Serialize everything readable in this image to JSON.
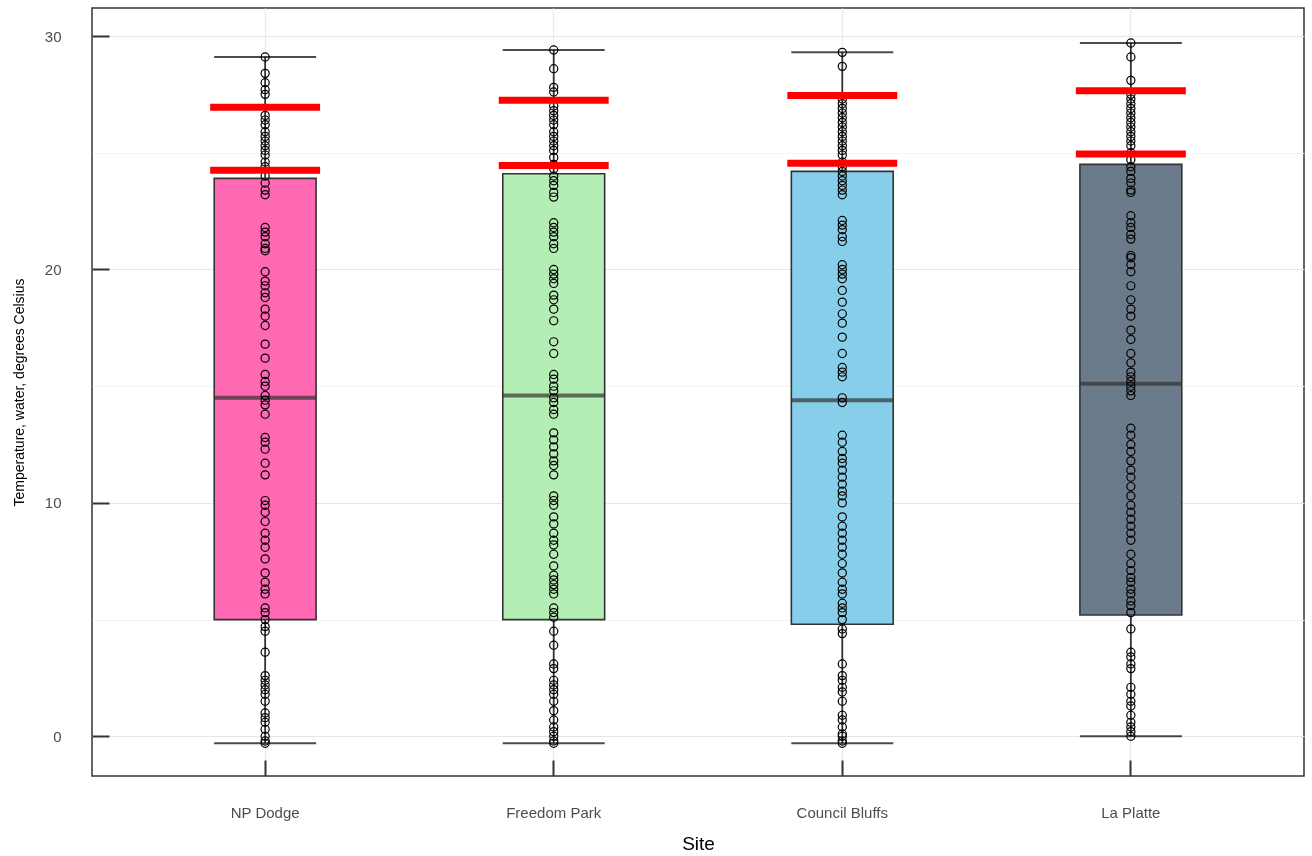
{
  "chart_data": {
    "type": "box",
    "xlabel": "Site",
    "ylabel": "Temperature, water, degrees Celsius",
    "categories": [
      "NP Dodge",
      "Freedom Park",
      "Council Bluffs",
      "La Platte"
    ],
    "boxes": [
      {
        "low": -0.3,
        "q1": 5.0,
        "median": 14.5,
        "q3": 23.9,
        "high": 29.1
      },
      {
        "low": -0.3,
        "q1": 5.0,
        "median": 14.6,
        "q3": 24.1,
        "high": 29.4
      },
      {
        "low": -0.3,
        "q1": 4.8,
        "median": 14.4,
        "q3": 24.2,
        "high": 29.3
      },
      {
        "low": 0.0,
        "q1": 5.2,
        "median": 15.1,
        "q3": 24.5,
        "high": 29.7
      }
    ],
    "colors": [
      "#ff69b4",
      "#b4eeb4",
      "#87ceeb",
      "#6c7b8b"
    ],
    "series": [
      {
        "type": "scatter",
        "color": "#000000",
        "marker": "circle",
        "x": [
          "NP Dodge",
          "NP Dodge",
          "NP Dodge",
          "NP Dodge",
          "NP Dodge",
          "NP Dodge",
          "NP Dodge",
          "NP Dodge",
          "NP Dodge",
          "NP Dodge",
          "NP Dodge",
          "NP Dodge",
          "NP Dodge",
          "NP Dodge",
          "NP Dodge",
          "NP Dodge",
          "NP Dodge",
          "NP Dodge",
          "NP Dodge",
          "NP Dodge",
          "NP Dodge",
          "NP Dodge",
          "NP Dodge",
          "NP Dodge",
          "NP Dodge",
          "NP Dodge",
          "NP Dodge",
          "NP Dodge",
          "NP Dodge",
          "NP Dodge",
          "NP Dodge",
          "NP Dodge",
          "NP Dodge",
          "NP Dodge",
          "NP Dodge",
          "NP Dodge",
          "NP Dodge",
          "NP Dodge",
          "NP Dodge",
          "NP Dodge",
          "NP Dodge",
          "NP Dodge",
          "NP Dodge",
          "NP Dodge",
          "NP Dodge",
          "NP Dodge",
          "NP Dodge",
          "NP Dodge",
          "NP Dodge",
          "NP Dodge",
          "NP Dodge",
          "NP Dodge",
          "NP Dodge",
          "NP Dodge",
          "NP Dodge",
          "NP Dodge",
          "NP Dodge",
          "NP Dodge",
          "NP Dodge",
          "NP Dodge",
          "NP Dodge",
          "NP Dodge",
          "NP Dodge",
          "NP Dodge",
          "NP Dodge",
          "NP Dodge",
          "NP Dodge",
          "NP Dodge",
          "NP Dodge",
          "NP Dodge",
          "NP Dodge",
          "NP Dodge",
          "NP Dodge",
          "NP Dodge",
          "NP Dodge",
          "NP Dodge",
          "NP Dodge",
          "NP Dodge",
          "NP Dodge"
        ],
        "values": [
          29.1,
          28.4,
          28.0,
          27.7,
          27.5,
          26.6,
          26.4,
          26.2,
          25.9,
          25.7,
          25.5,
          25.3,
          25.1,
          24.9,
          24.6,
          24.4,
          24.0,
          23.7,
          23.4,
          23.2,
          21.8,
          21.6,
          21.4,
          21.1,
          20.9,
          20.8,
          19.9,
          19.5,
          19.3,
          19.0,
          18.8,
          18.3,
          18.0,
          17.6,
          16.8,
          16.2,
          15.5,
          15.2,
          15.0,
          14.6,
          14.4,
          14.2,
          13.8,
          12.8,
          12.6,
          12.3,
          11.7,
          11.2,
          10.1,
          9.9,
          9.6,
          9.2,
          8.7,
          8.4,
          8.1,
          7.6,
          7.0,
          6.6,
          6.3,
          6.1,
          5.5,
          5.3,
          5.0,
          4.7,
          4.5,
          3.6,
          2.6,
          2.4,
          2.2,
          2.0,
          1.8,
          1.5,
          1.0,
          0.8,
          0.6,
          0.3,
          0.0,
          -0.2,
          -0.3
        ]
      },
      {
        "type": "scatter",
        "color": "#000000",
        "marker": "circle",
        "x": [
          "Freedom Park",
          "Freedom Park",
          "Freedom Park",
          "Freedom Park",
          "Freedom Park",
          "Freedom Park",
          "Freedom Park",
          "Freedom Park",
          "Freedom Park",
          "Freedom Park",
          "Freedom Park",
          "Freedom Park",
          "Freedom Park",
          "Freedom Park",
          "Freedom Park",
          "Freedom Park",
          "Freedom Park",
          "Freedom Park",
          "Freedom Park",
          "Freedom Park",
          "Freedom Park",
          "Freedom Park",
          "Freedom Park",
          "Freedom Park",
          "Freedom Park",
          "Freedom Park",
          "Freedom Park",
          "Freedom Park",
          "Freedom Park",
          "Freedom Park",
          "Freedom Park",
          "Freedom Park",
          "Freedom Park",
          "Freedom Park",
          "Freedom Park",
          "Freedom Park",
          "Freedom Park",
          "Freedom Park",
          "Freedom Park",
          "Freedom Park",
          "Freedom Park",
          "Freedom Park",
          "Freedom Park",
          "Freedom Park",
          "Freedom Park",
          "Freedom Park",
          "Freedom Park",
          "Freedom Park",
          "Freedom Park",
          "Freedom Park",
          "Freedom Park",
          "Freedom Park",
          "Freedom Park",
          "Freedom Park",
          "Freedom Park",
          "Freedom Park",
          "Freedom Park",
          "Freedom Park",
          "Freedom Park",
          "Freedom Park",
          "Freedom Park",
          "Freedom Park",
          "Freedom Park",
          "Freedom Park",
          "Freedom Park",
          "Freedom Park",
          "Freedom Park",
          "Freedom Park",
          "Freedom Park",
          "Freedom Park",
          "Freedom Park",
          "Freedom Park",
          "Freedom Park",
          "Freedom Park",
          "Freedom Park",
          "Freedom Park",
          "Freedom Park",
          "Freedom Park",
          "Freedom Park",
          "Freedom Park",
          "Freedom Park",
          "Freedom Park",
          "Freedom Park",
          "Freedom Park",
          "Freedom Park",
          "Freedom Park",
          "Freedom Park"
        ],
        "values": [
          29.4,
          28.6,
          27.8,
          27.6,
          27.0,
          26.8,
          26.6,
          26.4,
          26.2,
          25.9,
          25.7,
          25.5,
          25.3,
          25.1,
          24.8,
          24.5,
          24.3,
          24.0,
          23.8,
          23.6,
          23.3,
          23.1,
          22.0,
          21.8,
          21.6,
          21.4,
          21.1,
          20.9,
          20.0,
          19.8,
          19.6,
          19.4,
          18.9,
          18.7,
          18.3,
          17.8,
          16.9,
          16.4,
          15.5,
          15.3,
          15.0,
          14.8,
          14.5,
          14.3,
          14.0,
          13.8,
          13.0,
          12.7,
          12.4,
          12.1,
          11.8,
          11.6,
          11.2,
          10.3,
          10.1,
          9.9,
          9.4,
          9.1,
          8.7,
          8.4,
          8.2,
          7.8,
          7.3,
          6.9,
          6.7,
          6.5,
          6.3,
          6.1,
          5.5,
          5.3,
          5.1,
          4.5,
          3.9,
          3.1,
          2.9,
          2.4,
          2.2,
          2.0,
          1.8,
          1.5,
          1.1,
          0.7,
          0.4,
          0.2,
          0.0,
          -0.2,
          -0.3
        ]
      },
      {
        "type": "scatter",
        "color": "#000000",
        "marker": "circle",
        "x": [
          "Council Bluffs",
          "Council Bluffs",
          "Council Bluffs",
          "Council Bluffs",
          "Council Bluffs",
          "Council Bluffs",
          "Council Bluffs",
          "Council Bluffs",
          "Council Bluffs",
          "Council Bluffs",
          "Council Bluffs",
          "Council Bluffs",
          "Council Bluffs",
          "Council Bluffs",
          "Council Bluffs",
          "Council Bluffs",
          "Council Bluffs",
          "Council Bluffs",
          "Council Bluffs",
          "Council Bluffs",
          "Council Bluffs",
          "Council Bluffs",
          "Council Bluffs",
          "Council Bluffs",
          "Council Bluffs",
          "Council Bluffs",
          "Council Bluffs",
          "Council Bluffs",
          "Council Bluffs",
          "Council Bluffs",
          "Council Bluffs",
          "Council Bluffs",
          "Council Bluffs",
          "Council Bluffs",
          "Council Bluffs",
          "Council Bluffs",
          "Council Bluffs",
          "Council Bluffs",
          "Council Bluffs",
          "Council Bluffs",
          "Council Bluffs",
          "Council Bluffs",
          "Council Bluffs",
          "Council Bluffs",
          "Council Bluffs",
          "Council Bluffs",
          "Council Bluffs",
          "Council Bluffs",
          "Council Bluffs",
          "Council Bluffs",
          "Council Bluffs",
          "Council Bluffs",
          "Council Bluffs",
          "Council Bluffs",
          "Council Bluffs",
          "Council Bluffs",
          "Council Bluffs",
          "Council Bluffs",
          "Council Bluffs",
          "Council Bluffs",
          "Council Bluffs",
          "Council Bluffs",
          "Council Bluffs",
          "Council Bluffs",
          "Council Bluffs",
          "Council Bluffs",
          "Council Bluffs",
          "Council Bluffs",
          "Council Bluffs",
          "Council Bluffs",
          "Council Bluffs",
          "Council Bluffs",
          "Council Bluffs",
          "Council Bluffs",
          "Council Bluffs",
          "Council Bluffs",
          "Council Bluffs",
          "Council Bluffs",
          "Council Bluffs",
          "Council Bluffs",
          "Council Bluffs",
          "Council Bluffs",
          "Council Bluffs",
          "Council Bluffs"
        ],
        "values": [
          29.3,
          28.7,
          27.3,
          27.1,
          26.9,
          26.7,
          26.5,
          26.3,
          26.1,
          25.9,
          25.7,
          25.5,
          25.3,
          25.1,
          24.9,
          24.6,
          24.4,
          24.2,
          24.0,
          23.8,
          23.6,
          23.4,
          23.2,
          22.1,
          21.9,
          21.7,
          21.4,
          21.2,
          20.2,
          20.0,
          19.8,
          19.6,
          19.1,
          18.6,
          18.1,
          17.7,
          17.1,
          16.4,
          15.8,
          15.6,
          15.4,
          14.5,
          14.3,
          12.9,
          12.6,
          12.2,
          11.9,
          11.7,
          11.4,
          11.1,
          10.8,
          10.5,
          10.3,
          10.0,
          9.4,
          9.0,
          8.7,
          8.4,
          8.1,
          7.8,
          7.4,
          7.0,
          6.6,
          6.3,
          6.1,
          5.7,
          5.5,
          5.3,
          5.0,
          4.6,
          4.4,
          3.1,
          2.6,
          2.4,
          2.1,
          1.9,
          1.5,
          0.9,
          0.7,
          0.4,
          0.1,
          0.0,
          -0.2,
          -0.3
        ]
      },
      {
        "type": "scatter",
        "color": "#000000",
        "marker": "circle",
        "x": [
          "La Platte",
          "La Platte",
          "La Platte",
          "La Platte",
          "La Platte",
          "La Platte",
          "La Platte",
          "La Platte",
          "La Platte",
          "La Platte",
          "La Platte",
          "La Platte",
          "La Platte",
          "La Platte",
          "La Platte",
          "La Platte",
          "La Platte",
          "La Platte",
          "La Platte",
          "La Platte",
          "La Platte",
          "La Platte",
          "La Platte",
          "La Platte",
          "La Platte",
          "La Platte",
          "La Platte",
          "La Platte",
          "La Platte",
          "La Platte",
          "La Platte",
          "La Platte",
          "La Platte",
          "La Platte",
          "La Platte",
          "La Platte",
          "La Platte",
          "La Platte",
          "La Platte",
          "La Platte",
          "La Platte",
          "La Platte",
          "La Platte",
          "La Platte",
          "La Platte",
          "La Platte",
          "La Platte",
          "La Platte",
          "La Platte",
          "La Platte",
          "La Platte",
          "La Platte",
          "La Platte",
          "La Platte",
          "La Platte",
          "La Platte",
          "La Platte",
          "La Platte",
          "La Platte",
          "La Platte",
          "La Platte",
          "La Platte",
          "La Platte",
          "La Platte",
          "La Platte",
          "La Platte",
          "La Platte",
          "La Platte",
          "La Platte",
          "La Platte",
          "La Platte",
          "La Platte",
          "La Platte",
          "La Platte",
          "La Platte",
          "La Platte",
          "La Platte",
          "La Platte",
          "La Platte",
          "La Platte",
          "La Platte",
          "La Platte",
          "La Platte",
          "La Platte",
          "La Platte"
        ],
        "values": [
          29.7,
          29.1,
          28.1,
          27.5,
          27.3,
          27.1,
          26.9,
          26.7,
          26.5,
          26.3,
          26.1,
          25.9,
          25.7,
          25.5,
          25.3,
          25.0,
          24.7,
          24.4,
          24.2,
          23.9,
          23.7,
          23.4,
          23.3,
          22.3,
          22.0,
          21.8,
          21.5,
          21.3,
          20.6,
          20.5,
          20.2,
          19.9,
          19.3,
          18.7,
          18.3,
          18.0,
          17.4,
          17.0,
          16.4,
          16.0,
          15.6,
          15.4,
          15.2,
          15.0,
          14.8,
          14.6,
          13.2,
          12.9,
          12.5,
          12.2,
          11.8,
          11.4,
          11.1,
          10.7,
          10.3,
          9.9,
          9.6,
          9.3,
          9.0,
          8.7,
          8.4,
          7.8,
          7.4,
          7.1,
          6.8,
          6.6,
          6.3,
          6.1,
          5.8,
          5.6,
          5.3,
          4.6,
          3.6,
          3.4,
          3.1,
          2.9,
          2.1,
          1.8,
          1.5,
          1.3,
          0.9,
          0.6,
          0.4,
          0.2,
          0.0
        ]
      },
      {
        "type": "bar",
        "color": "#ff0000",
        "base": [
          26.8,
          27.1,
          27.3,
          27.5
        ],
        "values": [
          0.3,
          0.3,
          0.3,
          0.3
        ]
      },
      {
        "type": "bar",
        "color": "#ff0000",
        "base": [
          24.1,
          24.3,
          24.4,
          24.8
        ],
        "values": [
          0.3,
          0.3,
          0.3,
          0.3
        ]
      }
    ],
    "ylim": [
      -1.7,
      31.2
    ],
    "yticks": [
      0,
      {
        "value": 5,
        "label": null
      },
      10,
      {
        "value": 15,
        "label": null
      },
      20,
      {
        "value": 25,
        "label": null
      },
      30
    ],
    "grid": true
  }
}
